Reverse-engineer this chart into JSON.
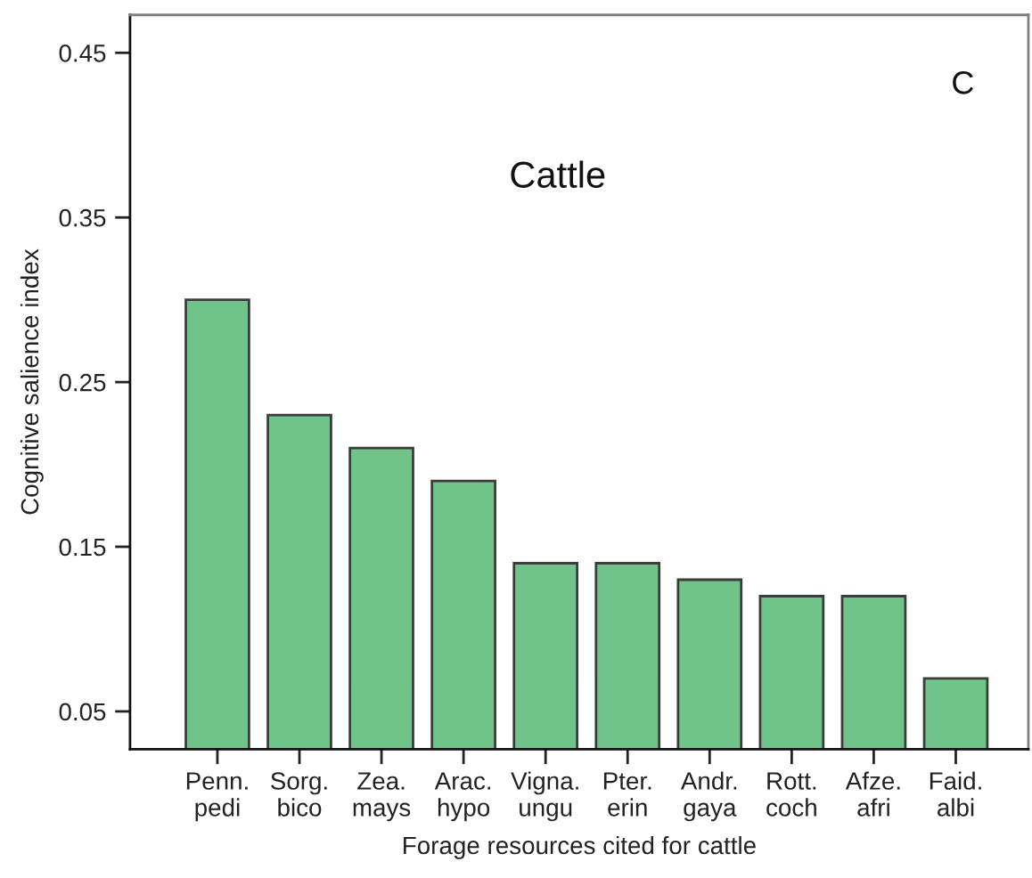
{
  "chart_data": {
    "type": "bar",
    "title": "Cattle",
    "xlabel": "Forage resources cited for cattle",
    "ylabel": "Cognitive salience index",
    "categories": [
      "Penn.\npedi",
      "Sorg.\nbico",
      "Zea.\nmays",
      "Arac.\nhypo",
      "Vigna.\nungu",
      "Pter.\nerin",
      "Andr.\ngaya",
      "Rott.\ncoch",
      "Afze.\nafri",
      "Faid.\nalbi"
    ],
    "values": [
      0.3,
      0.23,
      0.21,
      0.19,
      0.14,
      0.14,
      0.13,
      0.12,
      0.12,
      0.07
    ],
    "color": "#70c389",
    "ylim": [
      0.027,
      0.473
    ],
    "yticks": [
      0.05,
      0.15,
      0.25,
      0.35,
      0.45
    ],
    "grid": false,
    "annotations": [
      "C"
    ]
  }
}
